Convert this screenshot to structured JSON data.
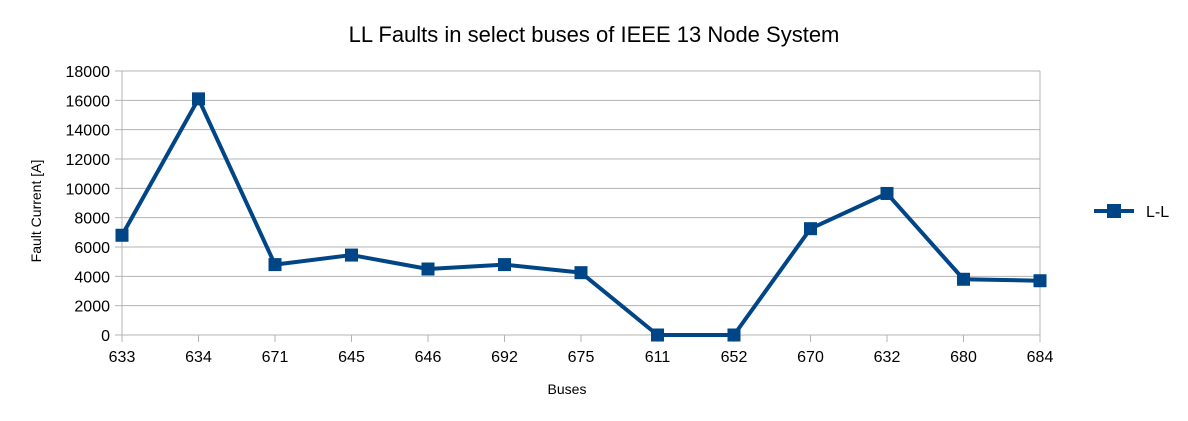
{
  "chart_data": {
    "type": "line",
    "title": "LL Faults in select buses of IEEE 13 Node System",
    "xlabel": "Buses",
    "ylabel": "Fault Current [A]",
    "categories": [
      "633",
      "634",
      "671",
      "645",
      "646",
      "692",
      "675",
      "611",
      "652",
      "670",
      "632",
      "680",
      "684"
    ],
    "series": [
      {
        "name": "L-L",
        "color": "#004586",
        "marker": "square",
        "values": [
          6800,
          16100,
          4800,
          5450,
          4500,
          4800,
          4250,
          0,
          0,
          7250,
          9650,
          3800,
          3700
        ]
      }
    ],
    "ylim": [
      0,
      18000
    ],
    "yticks": [
      "0",
      "2000",
      "4000",
      "6000",
      "8000",
      "10000",
      "12000",
      "14000",
      "16000",
      "18000"
    ],
    "grid": true,
    "legend": "right"
  }
}
